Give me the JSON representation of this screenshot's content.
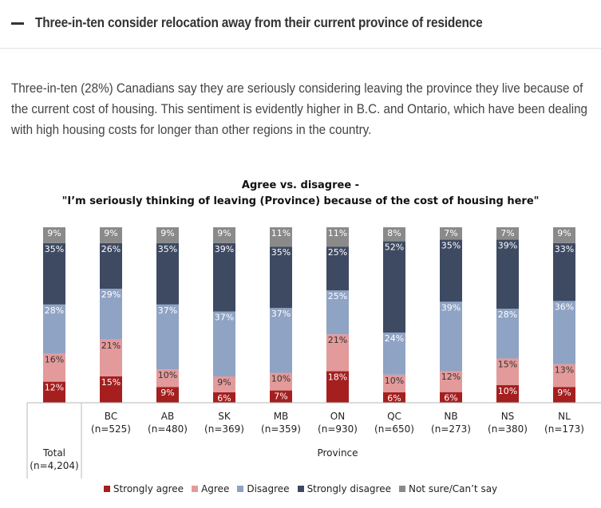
{
  "header": {
    "toggle_icon": "minus-icon",
    "title": "Three-in-ten consider relocation away from their current province of residence"
  },
  "intro": "Three-in-ten (28%) Canadians say they are seriously considering leaving the province they live because of the current cost of housing. This sentiment is evidently higher in B.C. and Ontario, which have been dealing with high housing costs for longer than other regions in the country.",
  "chart_data": {
    "type": "bar",
    "stacked": true,
    "percent_suffix": "%",
    "title": "Agree vs. disagree -",
    "subtitle": "\"I’m seriously thinking of leaving (Province) because of the cost of housing here\"",
    "categories": [
      "Total",
      "BC",
      "AB",
      "SK",
      "MB",
      "ON",
      "QC",
      "NB",
      "NS",
      "NL"
    ],
    "sample_sizes": [
      "(n=4,204)",
      "(n=525)",
      "(n=480)",
      "(n=369)",
      "(n=359)",
      "(n=930)",
      "(n=650)",
      "(n=273)",
      "(n=380)",
      "(n=173)"
    ],
    "group_label": "Province",
    "ylim": [
      0,
      100
    ],
    "series": [
      {
        "name": "Strongly agree",
        "color": "#a51f1f",
        "label_color": "#ffffff",
        "values": [
          12,
          15,
          9,
          6,
          7,
          18,
          6,
          6,
          10,
          9
        ]
      },
      {
        "name": "Agree",
        "color": "#e39a9a",
        "label_color": "#333333",
        "values": [
          16,
          21,
          10,
          9,
          10,
          21,
          10,
          12,
          15,
          13
        ]
      },
      {
        "name": "Disagree",
        "color": "#8fa3c4",
        "label_color": "#ffffff",
        "values": [
          28,
          29,
          37,
          37,
          37,
          25,
          24,
          39,
          28,
          36
        ]
      },
      {
        "name": "Strongly disagree",
        "color": "#3e4a62",
        "label_color": "#ffffff",
        "values": [
          35,
          26,
          35,
          39,
          35,
          25,
          52,
          35,
          39,
          33
        ]
      },
      {
        "name": "Not sure/Can’t say",
        "color": "#8a8a8a",
        "label_color": "#ffffff",
        "values": [
          9,
          9,
          9,
          9,
          11,
          11,
          8,
          7,
          7,
          9
        ]
      }
    ],
    "grid": false,
    "legend_position": "bottom"
  }
}
